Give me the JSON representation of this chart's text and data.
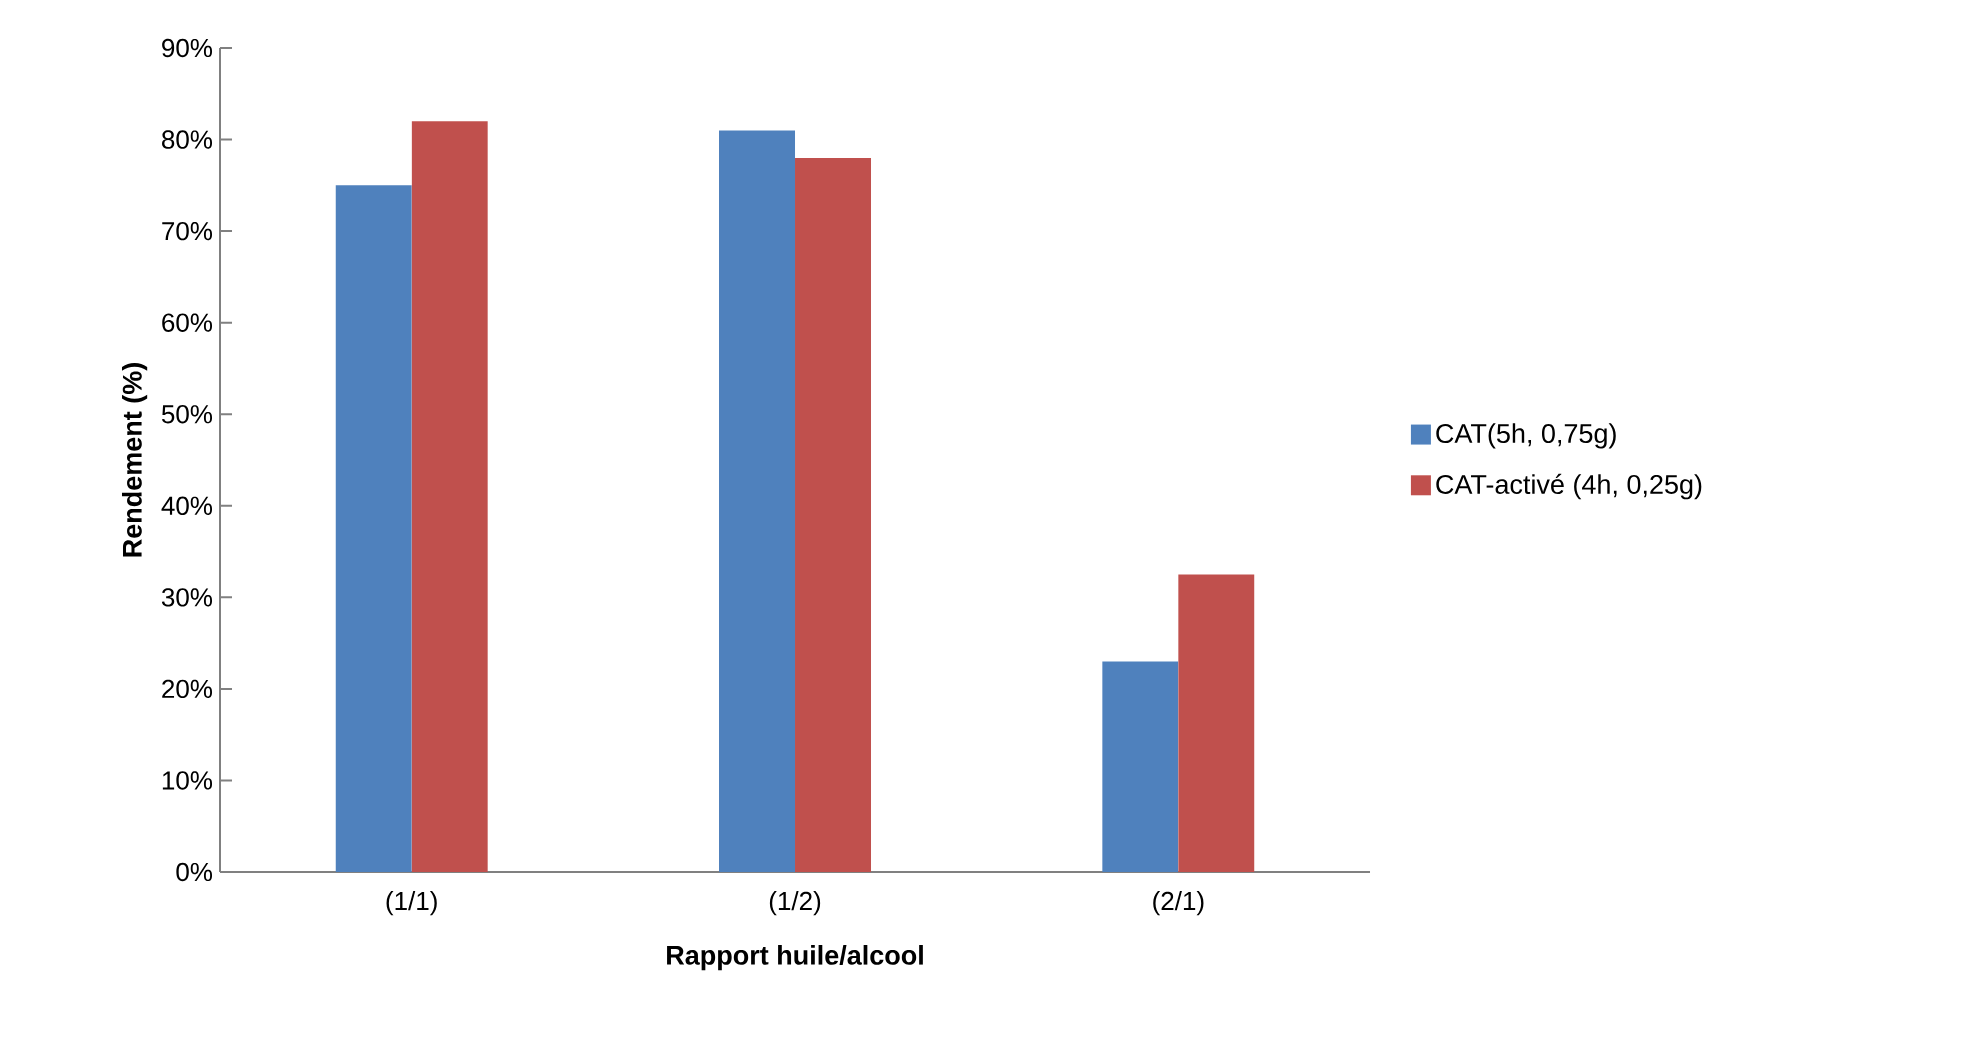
{
  "chart_data": {
    "type": "bar",
    "xlabel": "Rapport huile/alcool",
    "ylabel": "Rendement (%)",
    "categories": [
      "(1/1)",
      "(1/2)",
      "(2/1)"
    ],
    "series": [
      {
        "name": "CAT(5h, 0,75g)",
        "color": "#4f81bd",
        "values": [
          75,
          81,
          23
        ]
      },
      {
        "name": "CAT-activé (4h, 0,25g)",
        "color": "#c0504d",
        "values": [
          82,
          78,
          32.5
        ]
      }
    ],
    "ylim": [
      0,
      90
    ],
    "yticks": [
      {
        "value": 0,
        "label": "0%"
      },
      {
        "value": 10,
        "label": "10%"
      },
      {
        "value": 20,
        "label": "20%"
      },
      {
        "value": 30,
        "label": "30%"
      },
      {
        "value": 40,
        "label": "40%"
      },
      {
        "value": 50,
        "label": "50%"
      },
      {
        "value": 60,
        "label": "60%"
      },
      {
        "value": 70,
        "label": "70%"
      },
      {
        "value": 80,
        "label": "80%"
      },
      {
        "value": 90,
        "label": "90%"
      }
    ],
    "grid": false,
    "legend": "right"
  }
}
